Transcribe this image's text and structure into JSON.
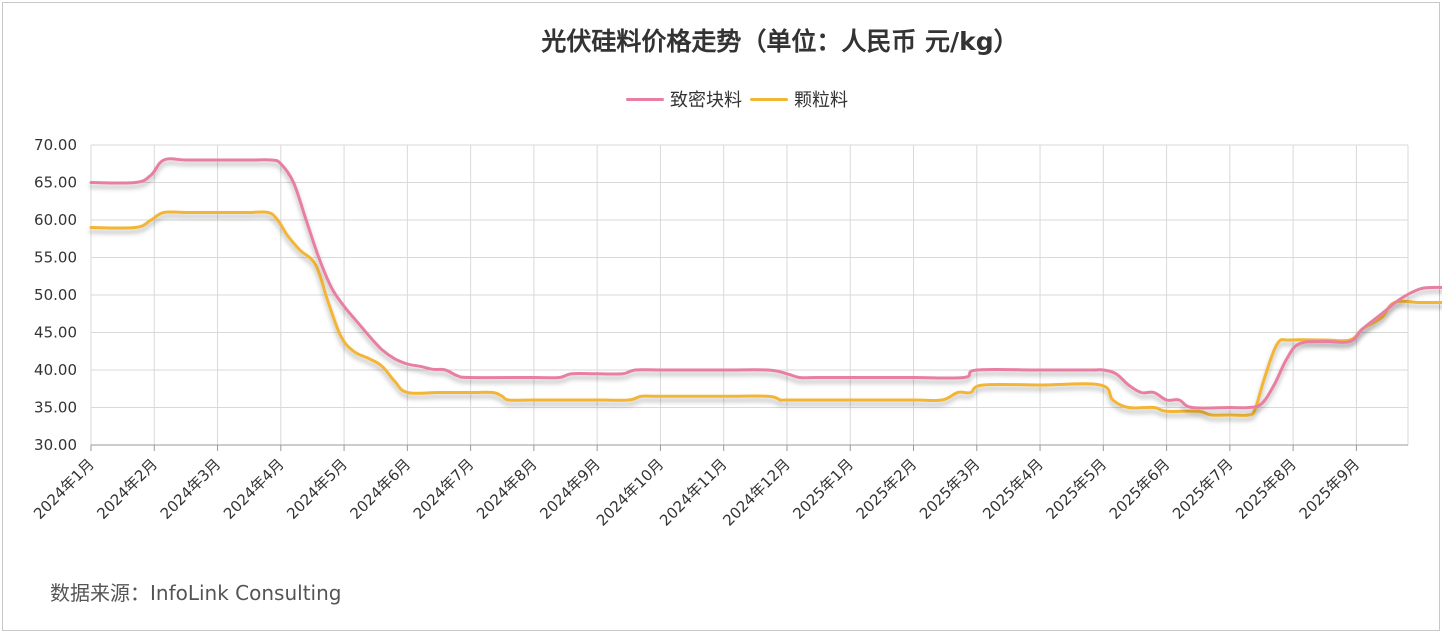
{
  "chart_data": {
    "type": "line",
    "title": "光伏硅料价格走势（单位：人民币 元/kg）",
    "source": "数据来源：InfoLink Consulting",
    "legend_position": "top-center",
    "grid": true,
    "ylim": [
      30,
      70
    ],
    "y_ticks": [
      "30.00",
      "35.00",
      "40.00",
      "45.00",
      "50.00",
      "55.00",
      "60.00",
      "65.00",
      "70.00"
    ],
    "x_ticks": [
      "2024年1月",
      "2024年2月",
      "2024年3月",
      "2024年4月",
      "2024年5月",
      "2024年6月",
      "2024年7月",
      "2024年8月",
      "2024年9月",
      "2024年10月",
      "2024年11月",
      "2024年12月",
      "2025年1月",
      "2025年2月",
      "2025年3月",
      "2025年4月",
      "2025年5月",
      "2025年6月",
      "2025年7月",
      "2025年8月",
      "2025年9月"
    ],
    "series": [
      {
        "name": "致密块料",
        "color": "#e87fa3",
        "points": [
          [
            0.0,
            65
          ],
          [
            0.7,
            65
          ],
          [
            0.95,
            66
          ],
          [
            1.15,
            68
          ],
          [
            1.5,
            68
          ],
          [
            2.0,
            68
          ],
          [
            2.5,
            68
          ],
          [
            2.85,
            68
          ],
          [
            3.0,
            67.5
          ],
          [
            3.2,
            65
          ],
          [
            3.4,
            60
          ],
          [
            3.6,
            55
          ],
          [
            3.8,
            51
          ],
          [
            4.0,
            48.5
          ],
          [
            4.2,
            46.5
          ],
          [
            4.4,
            44.5
          ],
          [
            4.6,
            42.7
          ],
          [
            4.8,
            41.5
          ],
          [
            5.0,
            40.8
          ],
          [
            5.2,
            40.5
          ],
          [
            5.4,
            40.1
          ],
          [
            5.6,
            40.0
          ],
          [
            5.8,
            39.2
          ],
          [
            6.0,
            39
          ],
          [
            7.0,
            39
          ],
          [
            7.4,
            39
          ],
          [
            7.6,
            39.5
          ],
          [
            8.0,
            39.5
          ],
          [
            8.4,
            39.5
          ],
          [
            8.6,
            40
          ],
          [
            9.0,
            40
          ],
          [
            10.0,
            40
          ],
          [
            10.7,
            40
          ],
          [
            11.0,
            39.5
          ],
          [
            11.2,
            39
          ],
          [
            11.5,
            39
          ],
          [
            12.0,
            39
          ],
          [
            13.0,
            39
          ],
          [
            13.8,
            39
          ],
          [
            14.0,
            40
          ],
          [
            15.0,
            40
          ],
          [
            15.8,
            40
          ],
          [
            16.0,
            40
          ],
          [
            16.2,
            39.5
          ],
          [
            16.4,
            38
          ],
          [
            16.6,
            37
          ],
          [
            16.8,
            37
          ],
          [
            17.0,
            36
          ],
          [
            17.2,
            36
          ],
          [
            17.4,
            35
          ],
          [
            18.0,
            35
          ],
          [
            18.3,
            35
          ],
          [
            18.5,
            35.5
          ],
          [
            18.7,
            38
          ],
          [
            18.9,
            41.5
          ],
          [
            19.1,
            43.5
          ],
          [
            19.5,
            43.8
          ],
          [
            19.9,
            43.8
          ],
          [
            20.1,
            45.5
          ],
          [
            20.4,
            47.5
          ],
          [
            20.7,
            49.5
          ],
          [
            21.0,
            50.8
          ],
          [
            21.2,
            51
          ],
          [
            21.4,
            51
          ]
        ]
      },
      {
        "name": "颗粒料",
        "color": "#f3b536",
        "points": [
          [
            0.0,
            59
          ],
          [
            0.7,
            59
          ],
          [
            0.95,
            60
          ],
          [
            1.15,
            61
          ],
          [
            1.5,
            61
          ],
          [
            2.0,
            61
          ],
          [
            2.5,
            61
          ],
          [
            2.8,
            61
          ],
          [
            2.95,
            60
          ],
          [
            3.1,
            58
          ],
          [
            3.3,
            56
          ],
          [
            3.55,
            54
          ],
          [
            3.75,
            49
          ],
          [
            3.95,
            44.5
          ],
          [
            4.15,
            42.5
          ],
          [
            4.4,
            41.5
          ],
          [
            4.6,
            40.5
          ],
          [
            4.8,
            38.5
          ],
          [
            5.0,
            37
          ],
          [
            5.5,
            37
          ],
          [
            6.0,
            37
          ],
          [
            6.35,
            37
          ],
          [
            6.5,
            36.5
          ],
          [
            6.6,
            36
          ],
          [
            7.0,
            36
          ],
          [
            8.0,
            36
          ],
          [
            8.5,
            36
          ],
          [
            8.7,
            36.5
          ],
          [
            9.0,
            36.5
          ],
          [
            10.0,
            36.5
          ],
          [
            10.7,
            36.5
          ],
          [
            10.9,
            36
          ],
          [
            11.0,
            36
          ],
          [
            12.0,
            36
          ],
          [
            13.0,
            36
          ],
          [
            13.45,
            36
          ],
          [
            13.7,
            37
          ],
          [
            13.9,
            37
          ],
          [
            14.1,
            38
          ],
          [
            15.0,
            38
          ],
          [
            15.95,
            38
          ],
          [
            16.15,
            36
          ],
          [
            16.4,
            35
          ],
          [
            16.8,
            35
          ],
          [
            17.0,
            34.5
          ],
          [
            17.5,
            34.5
          ],
          [
            17.7,
            34
          ],
          [
            18.0,
            34
          ],
          [
            18.3,
            34
          ],
          [
            18.4,
            34.8
          ],
          [
            18.55,
            39
          ],
          [
            18.75,
            43.5
          ],
          [
            18.95,
            44
          ],
          [
            19.5,
            44
          ],
          [
            19.9,
            44
          ],
          [
            20.1,
            45.5
          ],
          [
            20.4,
            47
          ],
          [
            20.6,
            49
          ],
          [
            21.0,
            49
          ],
          [
            21.4,
            49
          ]
        ]
      }
    ]
  }
}
